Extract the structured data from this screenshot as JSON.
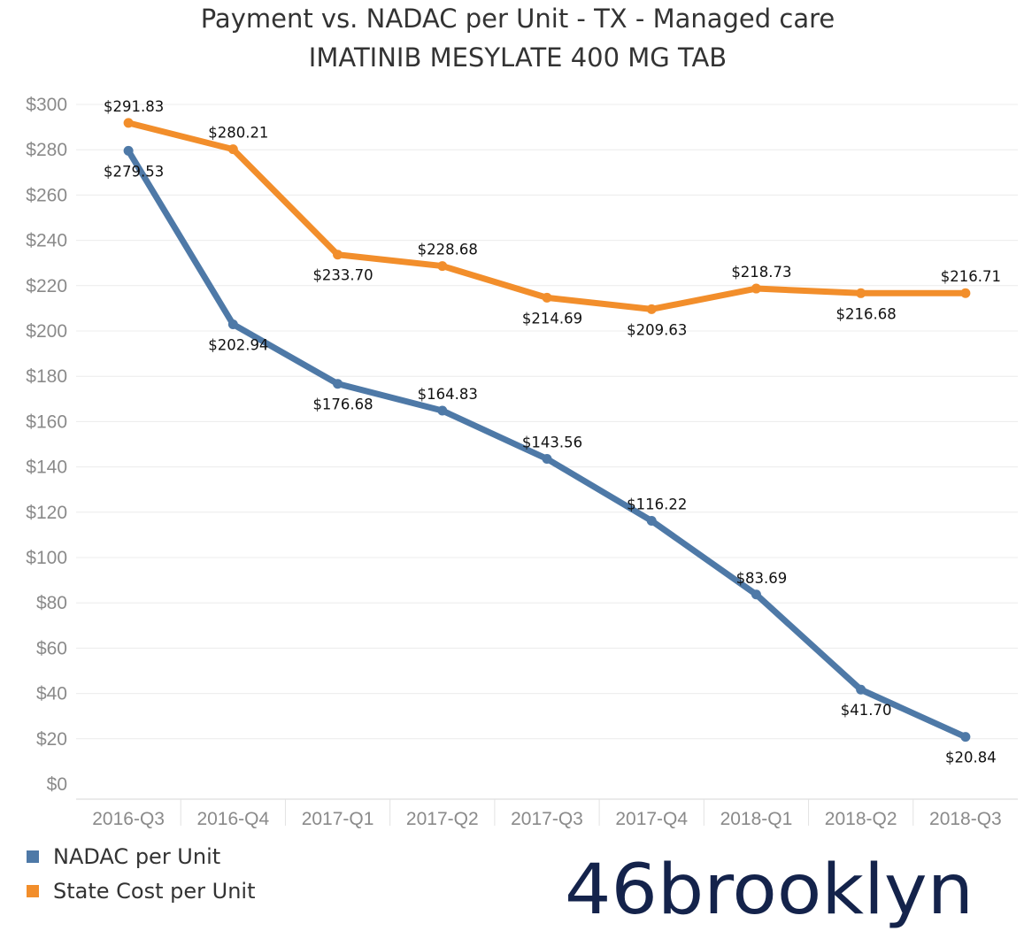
{
  "title": "Payment vs. NADAC per Unit - TX - Managed care",
  "subtitle": "IMATINIB MESYLATE 400 MG TAB",
  "chart_data": {
    "type": "line",
    "categories": [
      "2016-Q3",
      "2016-Q4",
      "2017-Q1",
      "2017-Q2",
      "2017-Q3",
      "2017-Q4",
      "2018-Q1",
      "2018-Q2",
      "2018-Q3"
    ],
    "ylim": [
      0,
      300
    ],
    "yticks": [
      0,
      20,
      40,
      60,
      80,
      100,
      120,
      140,
      160,
      180,
      200,
      220,
      240,
      260,
      280,
      300
    ],
    "ytick_labels": [
      "$0",
      "$20",
      "$40",
      "$60",
      "$80",
      "$100",
      "$120",
      "$140",
      "$160",
      "$180",
      "$200",
      "$220",
      "$240",
      "$260",
      "$280",
      "$300"
    ],
    "grid": true,
    "legend_position": "bottom-left",
    "series": [
      {
        "name": "NADAC per Unit",
        "color": "#4e79a7",
        "values": [
          279.53,
          202.94,
          176.68,
          164.83,
          143.56,
          116.22,
          83.69,
          41.7,
          20.84
        ],
        "labels": [
          "$279.53",
          "$202.94",
          "$176.68",
          "$164.83",
          "$143.56",
          "$116.22",
          "$83.69",
          "$41.70",
          "$20.84"
        ]
      },
      {
        "name": "State Cost per Unit",
        "color": "#f28e2b",
        "values": [
          291.83,
          280.21,
          233.7,
          228.68,
          214.69,
          209.63,
          218.73,
          216.68,
          216.71
        ],
        "labels": [
          "$291.83",
          "$280.21",
          "$233.70",
          "$228.68",
          "$214.69",
          "$209.63",
          "$218.73",
          "$216.68",
          "$216.71"
        ]
      }
    ]
  },
  "logo": {
    "text": "46brooklyn",
    "color": "#14234b"
  }
}
